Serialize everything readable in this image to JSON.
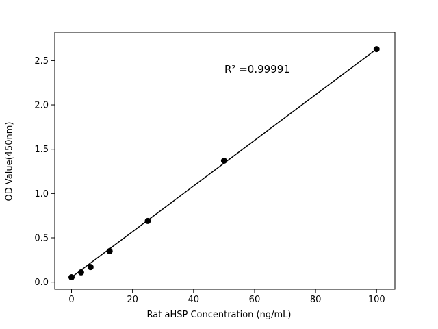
{
  "chart_data": {
    "type": "scatter",
    "title": "",
    "xlabel": "Rat aHSP Concentration (ng/mL)",
    "ylabel": "OD Value(450nm)",
    "annotation": "R² =0.99991",
    "x": [
      0,
      3.125,
      6.25,
      12.5,
      25,
      50,
      100
    ],
    "y": [
      0.055,
      0.11,
      0.17,
      0.35,
      0.69,
      1.37,
      2.63
    ],
    "xticks": [
      0,
      20,
      40,
      60,
      80,
      100
    ],
    "yticks": [
      0.0,
      0.5,
      1.0,
      1.5,
      2.0,
      2.5
    ],
    "xlim": [
      -5.5,
      106
    ],
    "ylim": [
      -0.08,
      2.82
    ],
    "grid": false,
    "legend": "none",
    "line": true,
    "marker_color": "#000000",
    "line_color": "#000000",
    "background_color": "#ffffff"
  }
}
